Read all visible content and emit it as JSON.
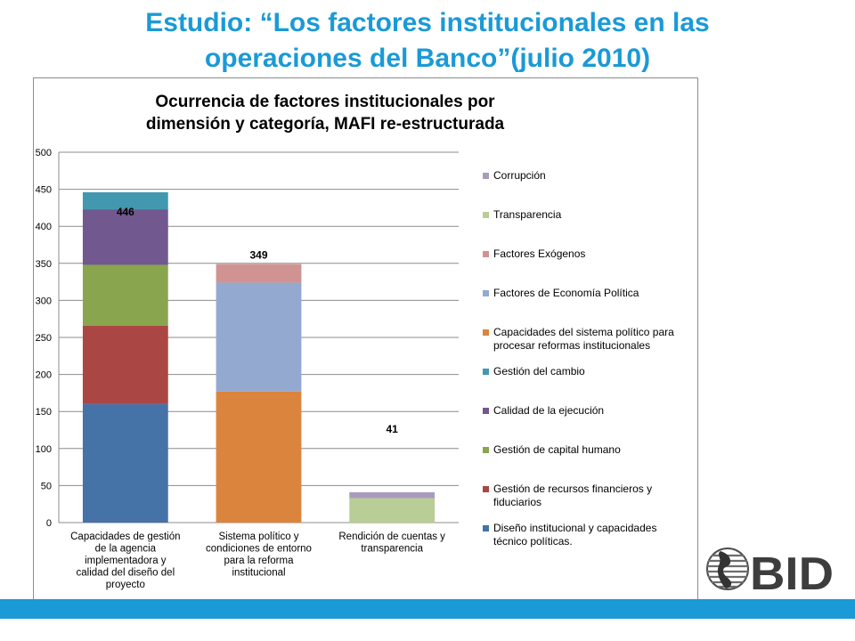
{
  "slide_title_line1": "Estudio: “Los factores institucionales en las",
  "slide_title_line2": "operaciones del Banco”(julio 2010)",
  "logo_text": "BID",
  "colors": {
    "title": "#1a9ad6",
    "bottom_bar": "#1a9ad6"
  },
  "chart_data": {
    "type": "bar",
    "stacked": true,
    "title": "Ocurrencia de factores institucionales por dimensión y categoría,  MAFI re-estructurada",
    "title_lines": [
      "Ocurrencia de factores institucionales por",
      "dimensión y categoría,  MAFI re-estructurada"
    ],
    "ylim": [
      0,
      500
    ],
    "yticks": [
      "0",
      "50",
      "100",
      "150",
      "200",
      "250",
      "300",
      "350",
      "400",
      "450",
      "500"
    ],
    "grid": true,
    "legend_position": "right",
    "categories": [
      [
        "Capacidades de gestión",
        "de la agencia",
        "implementadora y",
        "calidad del diseño del",
        "proyecto"
      ],
      [
        "Sistema político y",
        "condiciones de entorno",
        "para la reforma",
        "institucional"
      ],
      [
        "Rendición de cuentas y",
        "transparencia"
      ]
    ],
    "totals": [
      446,
      349,
      41
    ],
    "total_labels": [
      "446",
      "349",
      "41"
    ],
    "series": [
      {
        "name": "Diseño institucional y capacidades técnico políticas.",
        "legend_lines": [
          "Diseño institucional y capacidades",
          "técnico políticas."
        ],
        "color": "#4572a7",
        "values": [
          160,
          0,
          0
        ]
      },
      {
        "name": "Gestión de recursos financieros y fiduciarios",
        "legend_lines": [
          "Gestión de recursos financieros y",
          "fiduciarios"
        ],
        "color": "#aa4643",
        "values": [
          106,
          0,
          0
        ]
      },
      {
        "name": "Gestión de capital humano",
        "legend_lines": [
          "Gestión de capital humano"
        ],
        "color": "#89a54e",
        "values": [
          82,
          0,
          0
        ]
      },
      {
        "name": "Calidad de la ejecución",
        "legend_lines": [
          "Calidad de la ejecución"
        ],
        "color": "#71588f",
        "values": [
          75,
          0,
          0
        ]
      },
      {
        "name": "Gestión del cambio",
        "legend_lines": [
          "Gestión del cambio"
        ],
        "color": "#4198af",
        "values": [
          23,
          0,
          0
        ]
      },
      {
        "name": "Capacidades del sistema político para procesar reformas institucionales",
        "legend_lines": [
          "Capacidades del sistema político para",
          "procesar reformas institucionales"
        ],
        "color": "#db843d",
        "values": [
          0,
          177,
          0
        ]
      },
      {
        "name": "Factores de Economía Política",
        "legend_lines": [
          "Factores de Economía Política"
        ],
        "color": "#93a9cf",
        "values": [
          0,
          147,
          0
        ]
      },
      {
        "name": "Factores Exógenos",
        "legend_lines": [
          "Factores Exógenos"
        ],
        "color": "#d19392",
        "values": [
          0,
          25,
          0
        ]
      },
      {
        "name": "Transparencia",
        "legend_lines": [
          "Transparencia"
        ],
        "color": "#b9cd96",
        "values": [
          0,
          0,
          33
        ]
      },
      {
        "name": "Corrupción",
        "legend_lines": [
          "Corrupción"
        ],
        "color": "#a99bbd",
        "values": [
          0,
          0,
          8
        ]
      }
    ]
  }
}
